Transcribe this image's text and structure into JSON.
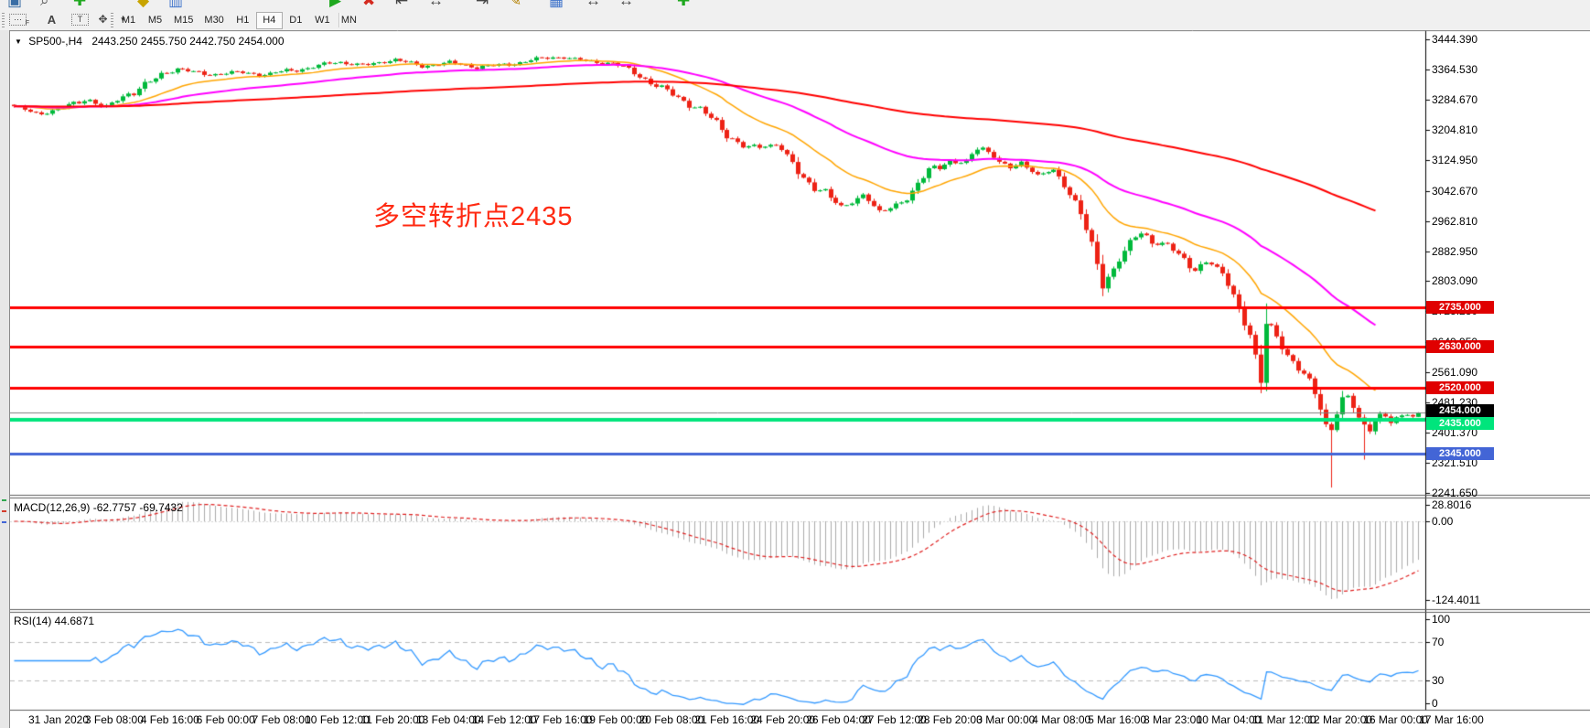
{
  "toolbar": {
    "top_icons": [
      "new-chart-icon",
      "zoom-icon",
      "add-indicator-icon",
      "fibonacci-icon",
      "objects-list-icon",
      "autotrade-icon",
      "stop-icon",
      "shift-left-icon",
      "shift-center-icon",
      "shift-right-icon",
      "pencil-icon",
      "grid-icon",
      "resize-h-icon",
      "resize-h2-icon",
      "add-icon"
    ],
    "draw_icons": [
      {
        "name": "fibo-grid-icon",
        "label": "F"
      },
      {
        "name": "text-label-icon",
        "label": "A"
      },
      {
        "name": "text-box-icon",
        "label": "T"
      },
      {
        "name": "arrow-objects-icon",
        "label": "✥"
      },
      {
        "name": "dropdown-arrow-icon",
        "label": "▾"
      }
    ],
    "timeframes": [
      {
        "label": "M1",
        "active": false
      },
      {
        "label": "M5",
        "active": false
      },
      {
        "label": "M15",
        "active": false
      },
      {
        "label": "M30",
        "active": false
      },
      {
        "label": "H1",
        "active": false
      },
      {
        "label": "H4",
        "active": true
      },
      {
        "label": "D1",
        "active": false
      },
      {
        "label": "W1",
        "active": false
      },
      {
        "label": "MN",
        "active": false
      }
    ]
  },
  "chart": {
    "symbol_period": "SP500-,H4",
    "ohlc_text": "2443.250 2455.750 2442.750 2454.000",
    "annotation_text": "多空转折点2435",
    "annotation_color": "#FF2A12",
    "price_ticks": [
      "3444.390",
      "3364.530",
      "3284.670",
      "3204.810",
      "3124.950",
      "3042.670",
      "2962.810",
      "2882.950",
      "2803.090",
      "2723.230",
      "2640.950",
      "2561.090",
      "2481.230",
      "2401.370",
      "2321.510",
      "2241.650"
    ],
    "badges": [
      {
        "label": "2735.000",
        "price": 2735,
        "bg": "#E00000",
        "fg": "#FFFFFF",
        "nudge": 0
      },
      {
        "label": "2630.000",
        "price": 2630,
        "bg": "#E00000",
        "fg": "#FFFFFF",
        "nudge": 0
      },
      {
        "label": "2520.000",
        "price": 2520,
        "bg": "#E00000",
        "fg": "#FFFFFF",
        "nudge": 0
      },
      {
        "label": "2454.000",
        "price": 2454,
        "bg": "#000000",
        "fg": "#FFFFFF",
        "nudge": -2
      },
      {
        "label": "2435.000",
        "price": 2435,
        "bg": "#00E57C",
        "fg": "#FFFFFF",
        "nudge": 4
      },
      {
        "label": "2345.000",
        "price": 2345,
        "bg": "#4365D6",
        "fg": "#FFFFFF",
        "nudge": 0
      }
    ]
  },
  "macd": {
    "label": "MACD(12,26,9) -62.7757 -69.7432",
    "axis_labels": [
      "28.8016",
      "0.00",
      "-124.4011"
    ]
  },
  "rsi": {
    "label": "RSI(14) 44.6871",
    "axis_labels": [
      "100",
      "70",
      "30",
      "0"
    ]
  },
  "time_axis": [
    "31 Jan 2020",
    "3 Feb 08:00",
    "4 Feb 16:00",
    "6 Feb 00:00",
    "7 Feb 08:00",
    "10 Feb 12:00",
    "11 Feb 20:00",
    "13 Feb 04:00",
    "14 Feb 12:00",
    "17 Feb 16:00",
    "19 Feb 00:00",
    "20 Feb 08:00",
    "21 Feb 16:00",
    "24 Feb 20:00",
    "26 Feb 04:00",
    "27 Feb 12:00",
    "28 Feb 20:00",
    "3 Mar 00:00",
    "4 Mar 08:00",
    "5 Mar 16:00",
    "8 Mar 23:00",
    "10 Mar 04:00",
    "11 Mar 12:00",
    "12 Mar 20:00",
    "16 Mar 00:00",
    "17 Mar 16:00"
  ],
  "chart_data": {
    "type": "candlestick",
    "symbol": "SP500-",
    "timeframe": "H4",
    "title": "SP500-,H4 2443.250 2455.750 2442.750 2454.000",
    "current_ohlc": {
      "open": 2443.25,
      "high": 2455.75,
      "low": 2442.75,
      "close": 2454.0
    },
    "y_axis_range": [
      2241.65,
      3444.39
    ],
    "x_range_labels": [
      "31 Jan 2020",
      "17 Mar 16:00"
    ],
    "grid": "off",
    "price_path": [
      [
        14,
        3268
      ],
      [
        40,
        3242
      ],
      [
        75,
        3272
      ],
      [
        95,
        3288
      ],
      [
        115,
        3258
      ],
      [
        150,
        3320
      ],
      [
        190,
        3365
      ],
      [
        225,
        3352
      ],
      [
        255,
        3358
      ],
      [
        285,
        3348
      ],
      [
        310,
        3362
      ],
      [
        340,
        3370
      ],
      [
        370,
        3382
      ],
      [
        400,
        3378
      ],
      [
        430,
        3390
      ],
      [
        460,
        3373
      ],
      [
        490,
        3385
      ],
      [
        520,
        3368
      ],
      [
        550,
        3378
      ],
      [
        580,
        3390
      ],
      [
        615,
        3396
      ],
      [
        645,
        3388
      ],
      [
        670,
        3380
      ],
      [
        700,
        3345
      ],
      [
        730,
        3310
      ],
      [
        760,
        3260
      ],
      [
        790,
        3205
      ],
      [
        820,
        3155
      ],
      [
        850,
        3165
      ],
      [
        875,
        3080
      ],
      [
        900,
        3050
      ],
      [
        920,
        2985
      ],
      [
        930,
        3010
      ],
      [
        945,
        3035
      ],
      [
        960,
        2985
      ],
      [
        975,
        3005
      ],
      [
        995,
        3030
      ],
      [
        1015,
        3090
      ],
      [
        1035,
        3125
      ],
      [
        1055,
        3118
      ],
      [
        1070,
        3165
      ],
      [
        1085,
        3135
      ],
      [
        1100,
        3090
      ],
      [
        1115,
        3120
      ],
      [
        1135,
        3085
      ],
      [
        1150,
        3100
      ],
      [
        1165,
        3050
      ],
      [
        1180,
        2990
      ],
      [
        1195,
        2880
      ],
      [
        1205,
        2795
      ],
      [
        1218,
        2850
      ],
      [
        1230,
        2890
      ],
      [
        1245,
        2925
      ],
      [
        1260,
        2900
      ],
      [
        1275,
        2905
      ],
      [
        1290,
        2870
      ],
      [
        1305,
        2840
      ],
      [
        1320,
        2858
      ],
      [
        1335,
        2820
      ],
      [
        1348,
        2760
      ],
      [
        1360,
        2700
      ],
      [
        1370,
        2645
      ],
      [
        1376,
        2500
      ],
      [
        1384,
        2705
      ],
      [
        1395,
        2660
      ],
      [
        1405,
        2610
      ],
      [
        1415,
        2580
      ],
      [
        1425,
        2545
      ],
      [
        1435,
        2520
      ],
      [
        1443,
        2470
      ],
      [
        1450,
        2420
      ],
      [
        1456,
        2425
      ],
      [
        1464,
        2490
      ],
      [
        1472,
        2500
      ],
      [
        1480,
        2462
      ],
      [
        1488,
        2420
      ],
      [
        1496,
        2410
      ],
      [
        1504,
        2438
      ],
      [
        1512,
        2452
      ],
      [
        1520,
        2426
      ],
      [
        1528,
        2440
      ],
      [
        1536,
        2458
      ],
      [
        1544,
        2446
      ],
      [
        1551,
        2454
      ]
    ],
    "long_wicks": [
      [
        1456,
        2256
      ],
      [
        1488,
        2330
      ]
    ],
    "horizontal_levels": [
      {
        "price": 2735,
        "color": "#FF0000",
        "width": 3
      },
      {
        "price": 2630,
        "color": "#FF0000",
        "width": 3
      },
      {
        "price": 2520,
        "color": "#FF0000",
        "width": 3
      },
      {
        "price": 2435,
        "color": "#00E57C",
        "width": 4
      },
      {
        "price": 2345,
        "color": "#4365D6",
        "width": 3
      }
    ],
    "current_price_line": {
      "price": 2454,
      "color": "#808080"
    },
    "moving_averages": [
      {
        "name": "fast",
        "period": 20,
        "color": "#FFA500"
      },
      {
        "name": "medium",
        "period": 55,
        "color": "#FF00FF"
      },
      {
        "name": "slow",
        "period": 200,
        "color": "#FF0000"
      }
    ],
    "candle_colors": {
      "up": "#00B93B",
      "down": "#ED2215"
    },
    "macd": {
      "fast": 12,
      "slow": 26,
      "signal": 9,
      "current_values": [
        -62.7757,
        -69.7432
      ],
      "axis": {
        "max": 28.8016,
        "zero": 0.0,
        "min": -124.4011
      },
      "histogram_color": "#ABABAB",
      "signal_color": "#E02020"
    },
    "rsi": {
      "period": 14,
      "current_value": 44.6871,
      "levels": [
        70,
        30
      ],
      "color": "#3399FF",
      "range": [
        0,
        100
      ]
    }
  }
}
